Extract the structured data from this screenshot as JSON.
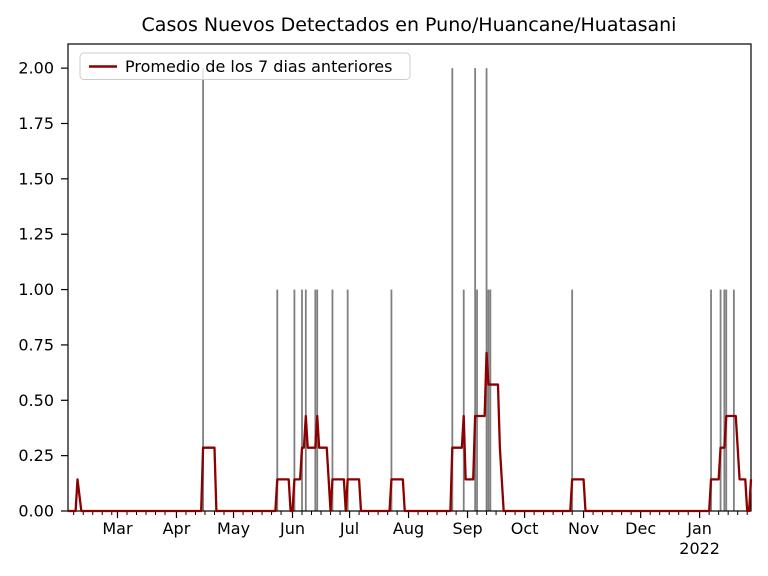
{
  "title": "Casos Nuevos Detectados en Puno/Huancane/Huatasani",
  "legend": {
    "label": "Promedio de los 7 dias anteriores"
  },
  "colors": {
    "bars": "#808080",
    "line": "#8b0000",
    "axis": "#000000",
    "legend_border": "#cccccc",
    "background": "#ffffff"
  },
  "chart_data": {
    "type": "bar",
    "title": "Casos Nuevos Detectados en Puno/Huancane/Huatasani",
    "xlabel": "",
    "ylabel": "",
    "grid": false,
    "legend_position": "upper left",
    "x_axis": {
      "start": "2021-02-03",
      "end": "2022-01-28",
      "major_ticks": [
        {
          "date": "2021-03-01",
          "label": "Mar"
        },
        {
          "date": "2021-04-01",
          "label": "Apr"
        },
        {
          "date": "2021-05-01",
          "label": "May"
        },
        {
          "date": "2021-06-01",
          "label": "Jun"
        },
        {
          "date": "2021-07-01",
          "label": "Jul"
        },
        {
          "date": "2021-08-01",
          "label": "Aug"
        },
        {
          "date": "2021-09-01",
          "label": "Sep"
        },
        {
          "date": "2021-10-01",
          "label": "Oct"
        },
        {
          "date": "2021-11-01",
          "label": "Nov"
        },
        {
          "date": "2021-12-01",
          "label": "Dec"
        },
        {
          "date": "2022-01-01",
          "label": "Jan",
          "sublabel": "2022"
        }
      ],
      "minor_tick_month_days": [
        6,
        11,
        16,
        21,
        26
      ]
    },
    "y_axis": {
      "tick_labels": [
        "0.00",
        "0.25",
        "0.50",
        "0.75",
        "1.00",
        "1.25",
        "1.50",
        "1.75",
        "2.00"
      ],
      "tick_values": [
        0,
        0.25,
        0.5,
        0.75,
        1.0,
        1.25,
        1.5,
        1.75,
        2.0
      ],
      "range": [
        0,
        2.109
      ]
    },
    "daily_cases_bars": {
      "points": [
        [
          "2021-04-15",
          2
        ],
        [
          "2021-05-24",
          1
        ],
        [
          "2021-06-02",
          1
        ],
        [
          "2021-06-06",
          1
        ],
        [
          "2021-06-08",
          1
        ],
        [
          "2021-06-13",
          1
        ],
        [
          "2021-06-14",
          1
        ],
        [
          "2021-06-22",
          1
        ],
        [
          "2021-06-30",
          1
        ],
        [
          "2021-07-23",
          1
        ],
        [
          "2021-08-24",
          2
        ],
        [
          "2021-08-30",
          1
        ],
        [
          "2021-09-05",
          2
        ],
        [
          "2021-09-06",
          1
        ],
        [
          "2021-09-11",
          2
        ],
        [
          "2021-09-12",
          1
        ],
        [
          "2021-09-13",
          1
        ],
        [
          "2021-10-26",
          1
        ],
        [
          "2022-01-07",
          1
        ],
        [
          "2022-01-12",
          1
        ],
        [
          "2022-01-14",
          1
        ],
        [
          "2022-01-15",
          1
        ],
        [
          "2022-01-19",
          1
        ]
      ]
    },
    "average_line": {
      "name": "Promedio de los 7 dias anteriores",
      "points": [
        [
          "2021-02-03",
          0
        ],
        [
          "2021-02-07",
          0
        ],
        [
          "2021-02-08",
          0.143
        ],
        [
          "2021-02-10",
          0
        ],
        [
          "2021-04-14",
          0
        ],
        [
          "2021-04-15",
          0.286
        ],
        [
          "2021-04-21",
          0.286
        ],
        [
          "2021-04-22",
          0
        ],
        [
          "2021-05-23",
          0
        ],
        [
          "2021-05-24",
          0.143
        ],
        [
          "2021-05-30",
          0.143
        ],
        [
          "2021-05-31",
          0
        ],
        [
          "2021-06-01",
          0
        ],
        [
          "2021-06-02",
          0.143
        ],
        [
          "2021-06-05",
          0.143
        ],
        [
          "2021-06-06",
          0.286
        ],
        [
          "2021-06-07",
          0.286
        ],
        [
          "2021-06-08",
          0.429
        ],
        [
          "2021-06-09",
          0.286
        ],
        [
          "2021-06-13",
          0.286
        ],
        [
          "2021-06-14",
          0.429
        ],
        [
          "2021-06-15",
          0.286
        ],
        [
          "2021-06-19",
          0.286
        ],
        [
          "2021-06-20",
          0.143
        ],
        [
          "2021-06-21",
          0
        ],
        [
          "2021-06-22",
          0.143
        ],
        [
          "2021-06-28",
          0.143
        ],
        [
          "2021-06-29",
          0
        ],
        [
          "2021-06-30",
          0.143
        ],
        [
          "2021-07-06",
          0.143
        ],
        [
          "2021-07-07",
          0
        ],
        [
          "2021-07-22",
          0
        ],
        [
          "2021-07-23",
          0.143
        ],
        [
          "2021-07-29",
          0.143
        ],
        [
          "2021-07-30",
          0
        ],
        [
          "2021-08-23",
          0
        ],
        [
          "2021-08-24",
          0.286
        ],
        [
          "2021-08-29",
          0.286
        ],
        [
          "2021-08-30",
          0.429
        ],
        [
          "2021-08-31",
          0.143
        ],
        [
          "2021-09-04",
          0.143
        ],
        [
          "2021-09-05",
          0.429
        ],
        [
          "2021-09-10",
          0.429
        ],
        [
          "2021-09-11",
          0.714
        ],
        [
          "2021-09-12",
          0.571
        ],
        [
          "2021-09-17",
          0.571
        ],
        [
          "2021-09-18",
          0.286
        ],
        [
          "2021-09-19",
          0.143
        ],
        [
          "2021-09-20",
          0
        ],
        [
          "2021-10-25",
          0
        ],
        [
          "2021-10-26",
          0.143
        ],
        [
          "2021-11-01",
          0.143
        ],
        [
          "2021-11-02",
          0
        ],
        [
          "2022-01-06",
          0
        ],
        [
          "2022-01-07",
          0.143
        ],
        [
          "2022-01-11",
          0.143
        ],
        [
          "2022-01-12",
          0.286
        ],
        [
          "2022-01-14",
          0.286
        ],
        [
          "2022-01-15",
          0.429
        ],
        [
          "2022-01-20",
          0.429
        ],
        [
          "2022-01-21",
          0.286
        ],
        [
          "2022-01-22",
          0.143
        ],
        [
          "2022-01-25",
          0.143
        ],
        [
          "2022-01-26",
          0
        ],
        [
          "2022-01-27",
          0
        ],
        [
          "2022-01-28",
          0.143
        ]
      ]
    }
  }
}
